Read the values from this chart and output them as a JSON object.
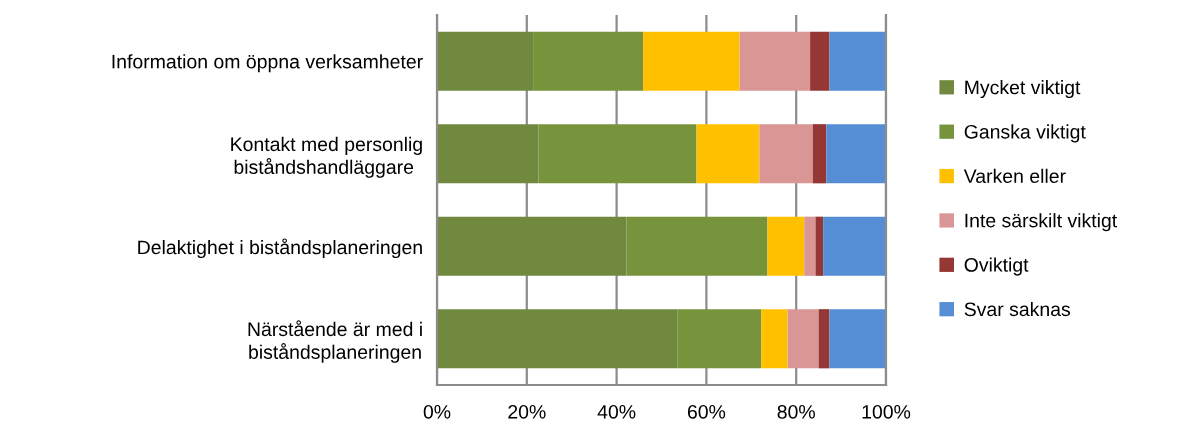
{
  "chart_data": {
    "type": "bar",
    "orientation": "horizontal",
    "stacked": true,
    "categories": [
      "Information om öppna verksamheter",
      "Kontakt med personlig\nbiståndshandläggare ",
      "Delaktighet i biståndsplaneringen",
      "Närstående är med i\nbiståndsplaneringen"
    ],
    "series": [
      {
        "name": "Mycket viktigt",
        "color": "#71893f",
        "values": [
          21.4,
          22.6,
          42.2,
          53.6
        ]
      },
      {
        "name": "Ganska viktigt",
        "color": "#77933c",
        "values": [
          24.5,
          35.2,
          31.4,
          18.6
        ]
      },
      {
        "name": "Varken eller",
        "color": "#ffc000",
        "values": [
          21.5,
          14.0,
          8.2,
          5.9
        ]
      },
      {
        "name": "Inte särskilt viktigt",
        "color": "#d99694",
        "values": [
          15.7,
          11.9,
          2.5,
          6.9
        ]
      },
      {
        "name": "Oviktigt",
        "color": "#953735",
        "values": [
          4.3,
          3.0,
          1.7,
          2.4
        ]
      },
      {
        "name": "Svar saknas",
        "color": "#558ed5",
        "values": [
          12.6,
          13.3,
          14.0,
          12.6
        ]
      }
    ],
    "xlim": [
      0,
      100
    ],
    "xticks": [
      {
        "value": 0,
        "label": "0%"
      },
      {
        "value": 20,
        "label": "20%"
      },
      {
        "value": 40,
        "label": "40%"
      },
      {
        "value": 60,
        "label": "60%"
      },
      {
        "value": 80,
        "label": "80%"
      },
      {
        "value": 100,
        "label": "100%"
      }
    ],
    "grid": "x",
    "legend": "right"
  }
}
